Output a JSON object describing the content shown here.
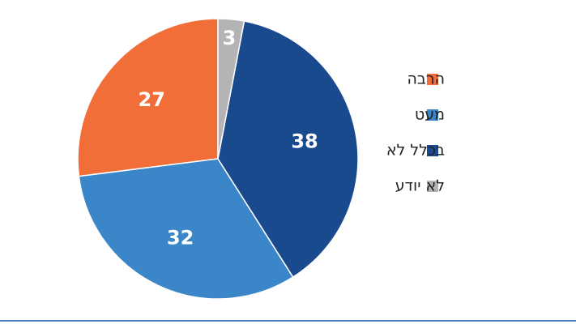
{
  "chart_data": {
    "type": "pie",
    "categories": [
      "הרבה",
      "מעט",
      "בכלל לא",
      "לא יודע"
    ],
    "values": [
      27,
      32,
      38,
      3
    ],
    "colors": [
      "#f26e39",
      "#3b86c8",
      "#1a4a8e",
      "#b4b4b4"
    ],
    "legend": "right"
  }
}
